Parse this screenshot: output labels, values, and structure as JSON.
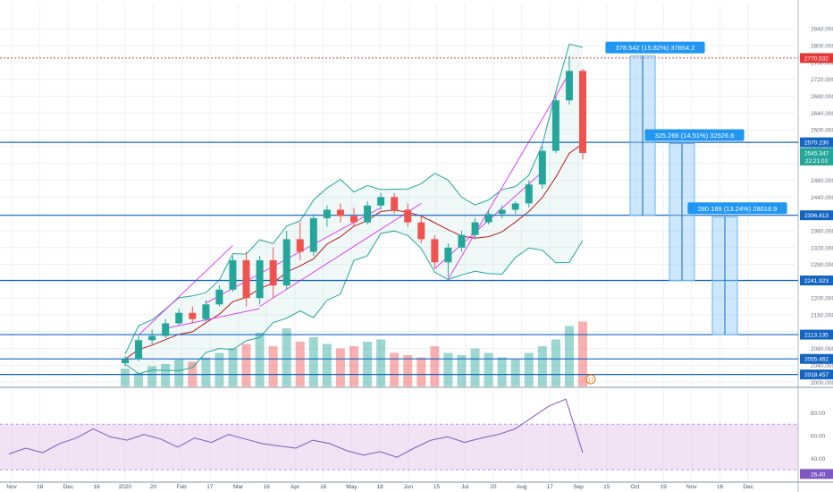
{
  "chart_data": [
    {
      "type": "candlestick",
      "title": "",
      "x_axis": {
        "tick_labels": [
          "Nov",
          "18",
          "Dec",
          "16",
          "2020",
          "20",
          "Feb",
          "17",
          "Mar",
          "16",
          "Apr",
          "16",
          "May",
          "18",
          "Jun",
          "15",
          "Jul",
          "20",
          "Aug",
          "17",
          "Sep",
          "15",
          "Oct",
          "19",
          "Nov",
          "16",
          "Dec"
        ],
        "current_date_badge": "17"
      },
      "y_axis": {
        "side": "right",
        "range": [
          1990,
          2900
        ],
        "tick_labels": [
          "2840.000",
          "2800.000",
          "2760.000",
          "2720.000",
          "2680.000",
          "2640.000",
          "2600.000",
          "2560.000",
          "2520.000",
          "2480.000",
          "2440.000",
          "2400.000",
          "2360.000",
          "2320.000",
          "2280.000",
          "2240.000",
          "2200.000",
          "2160.000",
          "2120.000",
          "2080.000",
          "2040.000",
          "2000.000"
        ]
      },
      "price_badges": [
        {
          "label": "2770.532",
          "value": 2770.532,
          "color": "#e53935",
          "style": "dotted"
        },
        {
          "label": "2570.230",
          "value": 2570.23,
          "color": "#1565c0"
        },
        {
          "label": "2545.347",
          "value": 2545.347,
          "color": "#26a69a"
        },
        {
          "label": "22:21:03",
          "value": 2527,
          "color": "#26a69a"
        },
        {
          "label": "2396.813",
          "value": 2396.813,
          "color": "#1565c0"
        },
        {
          "label": "2241.923",
          "value": 2241.923,
          "color": "#1565c0"
        },
        {
          "label": "2113.135",
          "value": 2113.135,
          "color": "#1565c0"
        },
        {
          "label": "2055.462",
          "value": 2055.462,
          "color": "#1565c0"
        },
        {
          "label": "2018.457",
          "value": 2018.457,
          "color": "#1565c0"
        }
      ],
      "horizontal_levels": [
        2770.532,
        2570.23,
        2396.813,
        2241.923,
        2113.135,
        2055.462,
        2018.457
      ],
      "measure_boxes": [
        {
          "label": "378.542 (15.82%) 37854.2",
          "from": 2396.813,
          "to": 2775.355
        },
        {
          "label": "325.266 (14.51%) 32526.6",
          "from": 2241.923,
          "to": 2567.189
        },
        {
          "label": "280.189 (13.24%) 28018.9",
          "from": 2113.135,
          "to": 2393.324
        }
      ],
      "series": [
        {
          "name": "",
          "kind": "ohlc",
          "points": [
            {
              "period": "2019-12-23",
              "open": 2045,
              "high": 2062,
              "low": 2038,
              "close": 2055
            },
            {
              "period": "2019-12-30",
              "open": 2055,
              "high": 2110,
              "low": 2050,
              "close": 2100
            },
            {
              "period": "2020-01-06",
              "open": 2100,
              "high": 2125,
              "low": 2090,
              "close": 2110
            },
            {
              "period": "2020-01-13",
              "open": 2110,
              "high": 2150,
              "low": 2105,
              "close": 2140
            },
            {
              "period": "2020-01-20",
              "open": 2140,
              "high": 2175,
              "low": 2135,
              "close": 2165
            },
            {
              "period": "2020-01-27",
              "open": 2165,
              "high": 2180,
              "low": 2140,
              "close": 2150
            },
            {
              "period": "2020-02-03",
              "open": 2150,
              "high": 2195,
              "low": 2145,
              "close": 2185
            },
            {
              "period": "2020-02-10",
              "open": 2185,
              "high": 2230,
              "low": 2180,
              "close": 2220
            },
            {
              "period": "2020-02-17",
              "open": 2220,
              "high": 2300,
              "low": 2215,
              "close": 2290
            },
            {
              "period": "2020-02-24",
              "open": 2290,
              "high": 2310,
              "low": 2180,
              "close": 2200
            },
            {
              "period": "2020-03-02",
              "open": 2200,
              "high": 2300,
              "low": 2185,
              "close": 2290
            },
            {
              "period": "2020-03-09",
              "open": 2290,
              "high": 2320,
              "low": 2200,
              "close": 2230
            },
            {
              "period": "2020-03-16",
              "open": 2230,
              "high": 2360,
              "low": 2220,
              "close": 2340
            },
            {
              "period": "2020-03-23",
              "open": 2340,
              "high": 2380,
              "low": 2290,
              "close": 2310
            },
            {
              "period": "2020-03-30",
              "open": 2310,
              "high": 2400,
              "low": 2300,
              "close": 2390
            },
            {
              "period": "2020-04-06",
              "open": 2390,
              "high": 2420,
              "low": 2370,
              "close": 2410
            },
            {
              "period": "2020-04-13",
              "open": 2410,
              "high": 2425,
              "low": 2380,
              "close": 2395
            },
            {
              "period": "2020-04-20",
              "open": 2395,
              "high": 2415,
              "low": 2370,
              "close": 2380
            },
            {
              "period": "2020-04-27",
              "open": 2380,
              "high": 2430,
              "low": 2375,
              "close": 2420
            },
            {
              "period": "2020-05-04",
              "open": 2420,
              "high": 2450,
              "low": 2410,
              "close": 2440
            },
            {
              "period": "2020-05-11",
              "open": 2440,
              "high": 2450,
              "low": 2400,
              "close": 2410
            },
            {
              "period": "2020-05-18",
              "open": 2410,
              "high": 2425,
              "low": 2370,
              "close": 2380
            },
            {
              "period": "2020-05-25",
              "open": 2380,
              "high": 2395,
              "low": 2330,
              "close": 2340
            },
            {
              "period": "2020-06-01",
              "open": 2340,
              "high": 2350,
              "low": 2270,
              "close": 2285
            },
            {
              "period": "2020-06-08",
              "open": 2285,
              "high": 2330,
              "low": 2250,
              "close": 2320
            },
            {
              "period": "2020-06-15",
              "open": 2320,
              "high": 2360,
              "low": 2310,
              "close": 2350
            },
            {
              "period": "2020-06-22",
              "open": 2350,
              "high": 2390,
              "low": 2340,
              "close": 2380
            },
            {
              "period": "2020-06-29",
              "open": 2380,
              "high": 2410,
              "low": 2375,
              "close": 2400
            },
            {
              "period": "2020-07-06",
              "open": 2400,
              "high": 2420,
              "low": 2390,
              "close": 2410
            },
            {
              "period": "2020-07-13",
              "open": 2410,
              "high": 2430,
              "low": 2400,
              "close": 2425
            },
            {
              "period": "2020-07-20",
              "open": 2425,
              "high": 2480,
              "low": 2415,
              "close": 2470
            },
            {
              "period": "2020-07-27",
              "open": 2470,
              "high": 2560,
              "low": 2460,
              "close": 2550
            },
            {
              "period": "2020-08-03",
              "open": 2550,
              "high": 2680,
              "low": 2545,
              "close": 2670
            },
            {
              "period": "2020-08-10",
              "open": 2670,
              "high": 2775,
              "low": 2660,
              "close": 2740
            },
            {
              "period": "2020-08-17",
              "open": 2740,
              "high": 2745,
              "low": 2530,
              "close": 2545
            }
          ]
        }
      ],
      "volume": {
        "values": [
          16,
          12,
          18,
          20,
          24,
          22,
          26,
          30,
          34,
          38,
          48,
          36,
          52,
          40,
          44,
          38,
          34,
          36,
          40,
          42,
          30,
          28,
          26,
          36,
          30,
          28,
          34,
          30,
          26,
          24,
          30,
          36,
          42,
          54,
          58
        ]
      },
      "rsi": {
        "axis_labels": [
          "80.00",
          "60.00",
          "40.00",
          "26.40"
        ],
        "band": [
          30,
          70
        ],
        "values": [
          44,
          49,
          45,
          53,
          58,
          66,
          59,
          56,
          61,
          57,
          50,
          58,
          54,
          61,
          57,
          53,
          51,
          49,
          56,
          53,
          47,
          43,
          46,
          41,
          49,
          56,
          59,
          54,
          58,
          61,
          66,
          76,
          86,
          92,
          45
        ]
      }
    }
  ]
}
